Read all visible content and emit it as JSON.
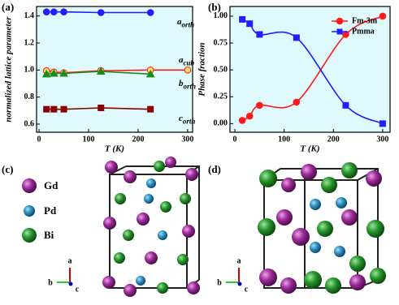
{
  "chart_data": [
    {
      "type": "line",
      "panel": "(a)",
      "xlabel": "T (K)",
      "ylabel": "normalized lattice parameter",
      "xlim": [
        -5,
        310
      ],
      "xticks": [
        0,
        100,
        200,
        300
      ],
      "ylim": [
        0.54,
        1.47
      ],
      "yticks": [
        0.6,
        0.8,
        {
          "value": 1,
          "label": "1.0"
        },
        1.2,
        1.4
      ],
      "background": "#dff9fd",
      "series": [
        {
          "name": "a",
          "subscript": "orth",
          "color": "#1f1fff",
          "marker": "circle",
          "marker_fill": "#1f1fff",
          "x": [
            15,
            30,
            50,
            125,
            225
          ],
          "values": [
            1.43,
            1.43,
            1.43,
            1.425,
            1.425
          ]
        },
        {
          "name": "a",
          "subscript": "cub",
          "color": "#ff1a1a",
          "marker": "circle",
          "marker_fill": "#ffe066",
          "x": [
            15,
            30,
            50,
            125,
            225,
            300
          ],
          "values": [
            0.995,
            0.985,
            0.98,
            0.995,
            1.0,
            1.0
          ]
        },
        {
          "name": "b",
          "subscript": "orth",
          "color": "#1a8c1a",
          "marker": "triangle",
          "marker_fill": "#1a8c1a",
          "x": [
            15,
            30,
            50,
            125,
            225
          ],
          "values": [
            0.97,
            0.975,
            0.975,
            0.99,
            0.97
          ]
        },
        {
          "name": "c",
          "subscript": "orth",
          "color": "#8b0000",
          "marker": "square",
          "marker_fill": "#8b0000",
          "x": [
            15,
            30,
            50,
            125,
            225
          ],
          "values": [
            0.71,
            0.71,
            0.71,
            0.72,
            0.71
          ]
        }
      ]
    },
    {
      "type": "line",
      "panel": "(b)",
      "xlabel": "T (K)",
      "ylabel": "Phase fraction",
      "smooth": true,
      "legend": "upper right",
      "xlim": [
        -10,
        315
      ],
      "xticks": [
        0,
        100,
        200,
        300
      ],
      "ylim": [
        -0.08,
        1.09
      ],
      "yticks": [
        {
          "value": 0,
          "label": "0.00"
        },
        {
          "value": 0.25,
          "label": "0.25"
        },
        {
          "value": 0.5,
          "label": "0.50"
        },
        {
          "value": 0.75,
          "label": "0.75"
        },
        {
          "value": 1,
          "label": "1.00"
        }
      ],
      "background": "#dff9fd",
      "series": [
        {
          "name": "Fm-3m",
          "color": "#ff1a1a",
          "marker": "circle",
          "marker_fill": "#ff1a1a",
          "x": [
            15,
            30,
            50,
            125,
            225,
            300
          ],
          "values": [
            0.03,
            0.07,
            0.17,
            0.2,
            0.83,
            1.0
          ]
        },
        {
          "name": "Pmma",
          "color": "#1f1fff",
          "marker": "square",
          "marker_fill": "#1f1fff",
          "x": [
            15,
            30,
            50,
            125,
            225,
            300
          ],
          "values": [
            0.97,
            0.93,
            0.83,
            0.8,
            0.17,
            0.0
          ]
        }
      ]
    }
  ],
  "structures": {
    "panels": [
      "(c)",
      "(d)"
    ],
    "legend": [
      "Gd",
      "Pd",
      "Bi"
    ],
    "axes": [
      "a",
      "b",
      "c"
    ]
  }
}
